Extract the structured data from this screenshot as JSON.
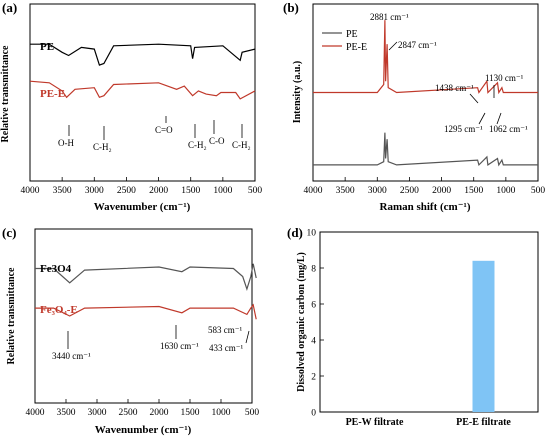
{
  "chart_data": [
    {
      "id": "a",
      "type": "line",
      "panel_label": "(a)",
      "xlabel": "Wavenumber (cm⁻¹)",
      "ylabel": "Relative transmittance",
      "x_ticks": [
        "4000",
        "3500",
        "3000",
        "2500",
        "2000",
        "1500",
        "1000",
        "500"
      ],
      "xlim": [
        4000,
        500
      ],
      "series": [
        {
          "name": "PE",
          "color": "#000000",
          "points": [
            [
              4000,
              85
            ],
            [
              3700,
              85
            ],
            [
              3500,
              80
            ],
            [
              3400,
              78
            ],
            [
              3200,
              83
            ],
            [
              3000,
              82
            ],
            [
              2920,
              72
            ],
            [
              2850,
              73
            ],
            [
              2700,
              84
            ],
            [
              2000,
              85
            ],
            [
              1500,
              84
            ],
            [
              1470,
              76
            ],
            [
              1440,
              83
            ],
            [
              1000,
              84
            ],
            [
              730,
              75
            ],
            [
              700,
              80
            ],
            [
              500,
              82
            ]
          ]
        },
        {
          "name": "PE-E",
          "color": "#c0392b",
          "points": [
            [
              4000,
              62
            ],
            [
              3700,
              61
            ],
            [
              3500,
              56
            ],
            [
              3430,
              52
            ],
            [
              3300,
              57
            ],
            [
              3000,
              58
            ],
            [
              2920,
              52
            ],
            [
              2850,
              53
            ],
            [
              2700,
              60
            ],
            [
              2000,
              61
            ],
            [
              1720,
              57
            ],
            [
              1600,
              59
            ],
            [
              1470,
              53
            ],
            [
              1380,
              56
            ],
            [
              1260,
              54
            ],
            [
              1100,
              53
            ],
            [
              1030,
              55
            ],
            [
              800,
              55
            ],
            [
              730,
              51
            ],
            [
              500,
              56
            ]
          ]
        }
      ],
      "annotations": [
        "O-H",
        "C-H₂",
        "C=O",
        "C-H₂",
        "C-O",
        "C-H₂"
      ]
    },
    {
      "id": "b",
      "type": "line",
      "panel_label": "(b)",
      "xlabel": "Raman shift (cm⁻¹)",
      "ylabel": "Intensity (a.u.)",
      "x_ticks": [
        "4000",
        "3500",
        "3000",
        "2500",
        "2000",
        "1500",
        "1000",
        "500"
      ],
      "xlim": [
        4000,
        500
      ],
      "series": [
        {
          "name": "PE",
          "color": "#555555",
          "points": [
            [
              4000,
              10
            ],
            [
              3000,
              10
            ],
            [
              2900,
              12
            ],
            [
              2881,
              30
            ],
            [
              2870,
              14
            ],
            [
              2847,
              26
            ],
            [
              2830,
              12
            ],
            [
              2700,
              10
            ],
            [
              1440,
              13
            ],
            [
              1420,
              10
            ],
            [
              1295,
              15
            ],
            [
              1280,
              10
            ],
            [
              1130,
              14
            ],
            [
              1110,
              10
            ],
            [
              1062,
              13
            ],
            [
              1040,
              10
            ],
            [
              500,
              10
            ]
          ]
        },
        {
          "name": "PE-E",
          "color": "#c0392b",
          "points": [
            [
              4000,
              55
            ],
            [
              3000,
              55
            ],
            [
              2900,
              60
            ],
            [
              2881,
              100
            ],
            [
              2870,
              62
            ],
            [
              2847,
              85
            ],
            [
              2830,
              58
            ],
            [
              2700,
              55
            ],
            [
              1440,
              58
            ],
            [
              1420,
              55
            ],
            [
              1295,
              62
            ],
            [
              1280,
              55
            ],
            [
              1130,
              61
            ],
            [
              1110,
              55
            ],
            [
              1062,
              58
            ],
            [
              1040,
              55
            ],
            [
              500,
              55
            ]
          ]
        }
      ],
      "annotations": [
        "2881 cm⁻¹",
        "2847 cm⁻¹",
        "1438 cm⁻¹",
        "1130 cm⁻¹",
        "1295 cm⁻¹",
        "1062 cm⁻¹"
      ]
    },
    {
      "id": "c",
      "type": "line",
      "panel_label": "(c)",
      "xlabel": "Wavenumber (cm⁻¹)",
      "ylabel": "Relative transmittance",
      "x_ticks": [
        "4000",
        "3500",
        "3000",
        "2500",
        "2000",
        "1500",
        "1000",
        "500"
      ],
      "xlim": [
        4000,
        500
      ],
      "series": [
        {
          "name": "Fe3O4",
          "color": "#555555",
          "points": [
            [
              4000,
              85
            ],
            [
              3700,
              85
            ],
            [
              3440,
              76
            ],
            [
              3200,
              84
            ],
            [
              2000,
              86
            ],
            [
              1630,
              83
            ],
            [
              1500,
              86
            ],
            [
              800,
              85
            ],
            [
              650,
              80
            ],
            [
              583,
              72
            ],
            [
              520,
              80
            ],
            [
              480,
              88
            ],
            [
              433,
              79
            ]
          ]
        },
        {
          "name": "Fe₃O₄-E",
          "color": "#c0392b",
          "points": [
            [
              4000,
              60
            ],
            [
              3700,
              60
            ],
            [
              3440,
              55
            ],
            [
              3200,
              60
            ],
            [
              2000,
              61
            ],
            [
              1630,
              57
            ],
            [
              1500,
              60
            ],
            [
              800,
              60
            ],
            [
              583,
              56
            ],
            [
              520,
              60
            ],
            [
              480,
              62
            ],
            [
              433,
              53
            ]
          ]
        }
      ],
      "annotations": [
        "3440 cm⁻¹",
        "1630 cm⁻¹",
        "583 cm⁻¹",
        "433 cm⁻¹"
      ]
    },
    {
      "id": "d",
      "type": "bar",
      "panel_label": "(d)",
      "ylabel": "Dissolved organic carbon (mg/L)",
      "categories": [
        "PE-W filtrate",
        "PE-E filtrate"
      ],
      "values": [
        0,
        8.4
      ],
      "ylim": [
        0,
        10
      ],
      "y_ticks": [
        "0",
        "2",
        "4",
        "6",
        "8",
        "10"
      ],
      "bar_color": "#7fc4f5"
    }
  ]
}
